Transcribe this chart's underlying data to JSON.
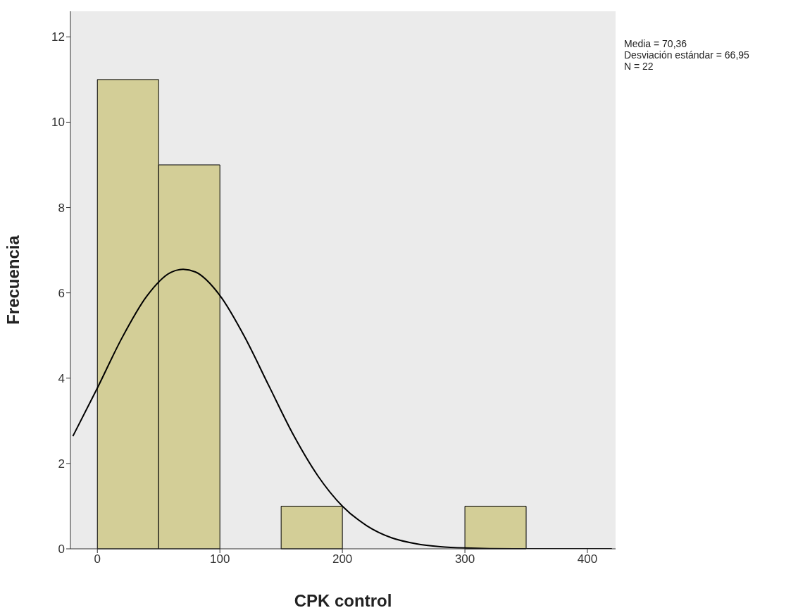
{
  "chart_data": {
    "type": "histogram",
    "xlabel": "CPK control",
    "ylabel": "Frecuencia",
    "bins": [
      0,
      50,
      100,
      150,
      200,
      250,
      300,
      350
    ],
    "values": [
      11,
      9,
      0,
      1,
      0,
      0,
      1
    ],
    "color": "#d3ce97",
    "series": [
      {
        "type": "line",
        "color": "#000000",
        "x": [
          -20,
          0,
          20,
          40,
          60,
          70,
          80,
          100,
          120,
          140,
          160,
          180,
          200,
          220,
          240,
          260,
          280,
          300,
          340,
          420
        ],
        "values": [
          2.64,
          3.77,
          4.94,
          5.91,
          6.48,
          6.55,
          6.49,
          5.94,
          4.98,
          3.82,
          2.67,
          1.71,
          1.0,
          0.54,
          0.26,
          0.12,
          0.05,
          0.02,
          0,
          0
        ]
      }
    ],
    "xlim": [
      -22,
      423
    ],
    "xticks": [
      0,
      100,
      200,
      300,
      400
    ],
    "ylim": [
      0,
      12.6
    ],
    "yticks": [
      0,
      2,
      4,
      6,
      8,
      10,
      12
    ],
    "grid": false,
    "marker": "none",
    "line_style": "solid",
    "annotations": [
      "Media = 70,36",
      "Desviación estándar = 66,95",
      "N = 22"
    ]
  }
}
